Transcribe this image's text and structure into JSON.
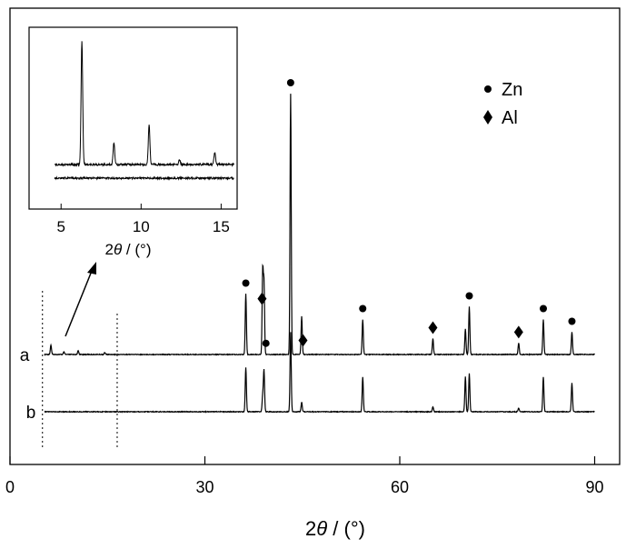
{
  "chart_data": {
    "type": "line",
    "xlabel_prefix": "2",
    "xlabel_theta": "θ",
    "xlabel_unit": " / (°)",
    "xlim": [
      0,
      95
    ],
    "xticks": [
      "0",
      "30",
      "60",
      "90"
    ],
    "xtick_values": [
      0,
      30,
      60,
      90
    ],
    "series": [
      {
        "name": "a",
        "peaks": [
          [
            6.3,
            0.15
          ],
          [
            8.3,
            0.04
          ],
          [
            10.5,
            0.06
          ],
          [
            14.6,
            0.03
          ],
          [
            36.3,
            0.95
          ],
          [
            38.9,
            1.3
          ],
          [
            39.1,
            1.1
          ],
          [
            43.2,
            4.1
          ],
          [
            44.9,
            0.6
          ],
          [
            54.3,
            0.55
          ],
          [
            65.1,
            0.25
          ],
          [
            70.1,
            0.4
          ],
          [
            70.7,
            0.75
          ],
          [
            78.3,
            0.18
          ],
          [
            82.1,
            0.55
          ],
          [
            86.5,
            0.35
          ]
        ]
      },
      {
        "name": "b",
        "peaks": [
          [
            36.3,
            0.7
          ],
          [
            38.9,
            0.25
          ],
          [
            39.1,
            0.65
          ],
          [
            43.2,
            1.25
          ],
          [
            44.9,
            0.15
          ],
          [
            54.3,
            0.55
          ],
          [
            65.1,
            0.08
          ],
          [
            70.1,
            0.55
          ],
          [
            70.7,
            0.6
          ],
          [
            78.3,
            0.06
          ],
          [
            82.1,
            0.55
          ],
          [
            86.5,
            0.45
          ]
        ]
      }
    ],
    "markers": [
      {
        "symbol": "circle",
        "x": 36.3
      },
      {
        "symbol": "diamond",
        "x": 38.8
      },
      {
        "symbol": "circle",
        "x": 39.4
      },
      {
        "symbol": "circle",
        "x": 43.2
      },
      {
        "symbol": "diamond",
        "x": 45.1
      },
      {
        "symbol": "circle",
        "x": 54.3
      },
      {
        "symbol": "diamond",
        "x": 65.1
      },
      {
        "symbol": "circle",
        "x": 70.7
      },
      {
        "symbol": "diamond",
        "x": 78.3
      },
      {
        "symbol": "circle",
        "x": 82.1
      },
      {
        "symbol": "circle",
        "x": 86.5
      }
    ],
    "legend": [
      {
        "symbol": "circle",
        "label": "Zn"
      },
      {
        "symbol": "diamond",
        "label": "Al"
      }
    ],
    "zoom_region": [
      5,
      16.5
    ],
    "inset": {
      "xlim": [
        3,
        16
      ],
      "xticks": [
        "5",
        "10",
        "15"
      ],
      "xtick_values": [
        5,
        10,
        15
      ],
      "xlabel_prefix": "2",
      "xlabel_theta": "θ",
      "xlabel_unit": " / (°)",
      "series_a_peaks": [
        [
          6.3,
          1.0
        ],
        [
          8.3,
          0.18
        ],
        [
          10.5,
          0.32
        ],
        [
          12.4,
          0.04
        ],
        [
          14.6,
          0.1
        ]
      ]
    }
  }
}
